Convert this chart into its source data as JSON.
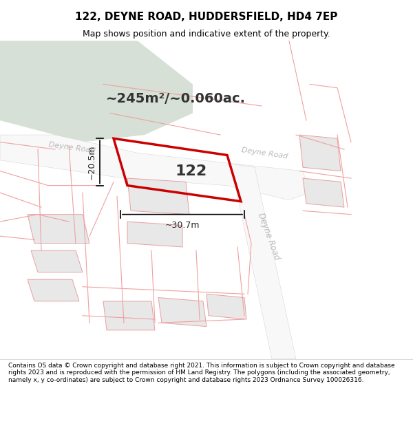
{
  "title_line1": "122, DEYNE ROAD, HUDDERSFIELD, HD4 7EP",
  "title_line2": "Map shows position and indicative extent of the property.",
  "area_label": "~245m²/~0.060ac.",
  "property_number": "122",
  "dim_width": "~30.7m",
  "dim_height": "~20.5m",
  "footer_text": "Contains OS data © Crown copyright and database right 2021. This information is subject to Crown copyright and database rights 2023 and is reproduced with the permission of HM Land Registry. The polygons (including the associated geometry, namely x, y co-ordinates) are subject to Crown copyright and database rights 2023 Ordnance Survey 100026316.",
  "bg_map_color": "#f2f4f0",
  "road_color": "#ffffff",
  "green_patch_color": "#d6e0d6",
  "building_fill": "#e8e8e8",
  "building_stroke": "#e8a0a0",
  "plot_outline_color": "#cc0000",
  "dim_line_color": "#000000",
  "road_label_color": "#c0c0c0",
  "title_bg": "#e8ecec"
}
